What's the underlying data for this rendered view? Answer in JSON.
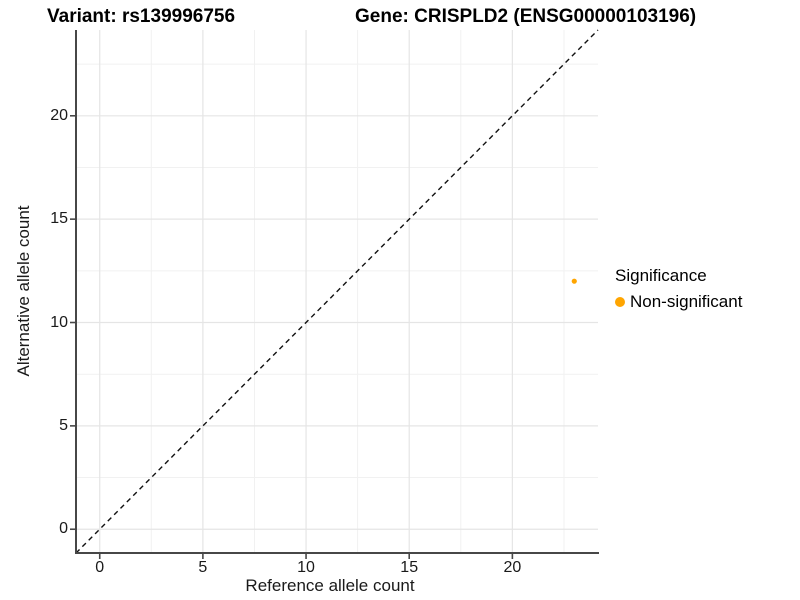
{
  "chart_data": {
    "type": "scatter",
    "title_left": "Variant: rs139996756",
    "title_right": "Gene: CRISPLD2 (ENSG00000103196)",
    "xlabel": "Reference allele count",
    "ylabel": "Alternative allele count",
    "xlim": [
      -1.15,
      24.15
    ],
    "ylim": [
      -1.15,
      24.15
    ],
    "x_ticks": [
      0,
      5,
      10,
      15,
      20
    ],
    "y_ticks": [
      0,
      5,
      10,
      15,
      20
    ],
    "x_minor_ticks": [
      2.5,
      7.5,
      12.5,
      17.5,
      22.5
    ],
    "y_minor_ticks": [
      2.5,
      7.5,
      12.5,
      17.5,
      22.5
    ],
    "grid": "on",
    "identity_line": {
      "style": "dashed",
      "slope": 1,
      "intercept": 0,
      "color": "#111111"
    },
    "points": [
      {
        "x": 23,
        "y": 12,
        "series": "Non-significant",
        "color": "#FFA500",
        "radius": 2.6
      }
    ],
    "legend": {
      "title": "Significance",
      "position": "right",
      "entries": [
        {
          "label": "Non-significant",
          "color": "#FFA500"
        }
      ]
    },
    "colors": {
      "grid_major": "#E5E5E5",
      "grid_minor": "#F1F1F1",
      "axis_line": "#474747",
      "text": "#1A1A1A"
    }
  }
}
